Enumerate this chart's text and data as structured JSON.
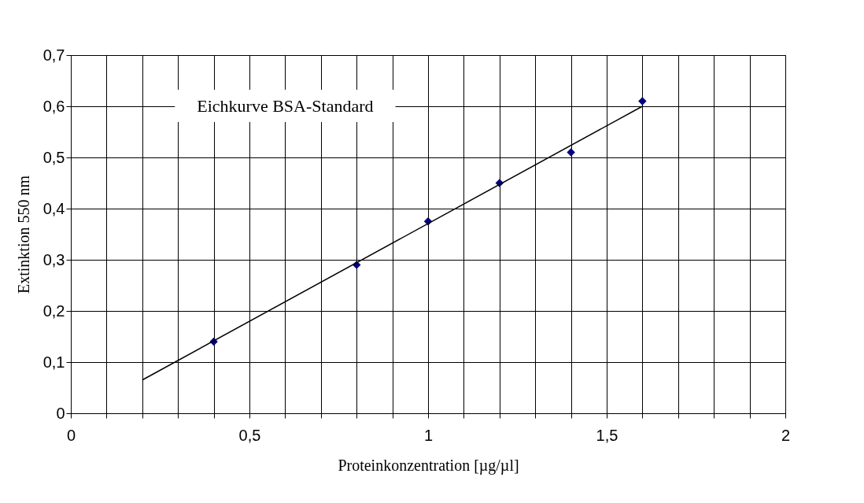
{
  "chart_data": {
    "type": "scatter",
    "xlabel": "Proteinkonzentration [µg/µl]",
    "ylabel": "Extinktion 550 nm",
    "annotations": [
      "Eichkurve BSA-Standard"
    ],
    "series": [
      {
        "type": "scatter",
        "color": "#000080",
        "marker": "diamond",
        "x": [
          0.4,
          0.8,
          1.0,
          1.2,
          1.4,
          1.6
        ],
        "values": [
          0.14,
          0.29,
          0.375,
          0.45,
          0.51,
          0.61
        ]
      },
      {
        "type": "line",
        "color": "#000000",
        "marker": "none",
        "x": [
          0.2,
          1.6
        ],
        "values": [
          0.065,
          0.6
        ]
      }
    ],
    "xlim": [
      0,
      2
    ],
    "ylim": [
      0,
      0.7
    ],
    "xticks": [
      0,
      {
        "value": 0.1,
        "label": null
      },
      {
        "value": 0.2,
        "label": null
      },
      {
        "value": 0.3,
        "label": null
      },
      {
        "value": 0.4,
        "label": null
      },
      {
        "value": 0.5,
        "label": "0,5"
      },
      {
        "value": 0.6,
        "label": null
      },
      {
        "value": 0.7,
        "label": null
      },
      {
        "value": 0.8,
        "label": null
      },
      {
        "value": 0.9,
        "label": null
      },
      1,
      {
        "value": 1.1,
        "label": null
      },
      {
        "value": 1.2,
        "label": null
      },
      {
        "value": 1.3,
        "label": null
      },
      {
        "value": 1.4,
        "label": null
      },
      {
        "value": 1.5,
        "label": "1,5"
      },
      {
        "value": 1.6,
        "label": null
      },
      {
        "value": 1.7,
        "label": null
      },
      {
        "value": 1.8,
        "label": null
      },
      {
        "value": 1.9,
        "label": null
      },
      2
    ],
    "yticks": [
      0,
      {
        "value": 0.1,
        "label": "0,1"
      },
      {
        "value": 0.2,
        "label": "0,2"
      },
      {
        "value": 0.3,
        "label": "0,3"
      },
      {
        "value": 0.4,
        "label": "0,4"
      },
      {
        "value": 0.5,
        "label": "0,5"
      },
      {
        "value": 0.6,
        "label": "0,6"
      },
      {
        "value": 0.7,
        "label": "0,7"
      }
    ],
    "grid": true
  }
}
